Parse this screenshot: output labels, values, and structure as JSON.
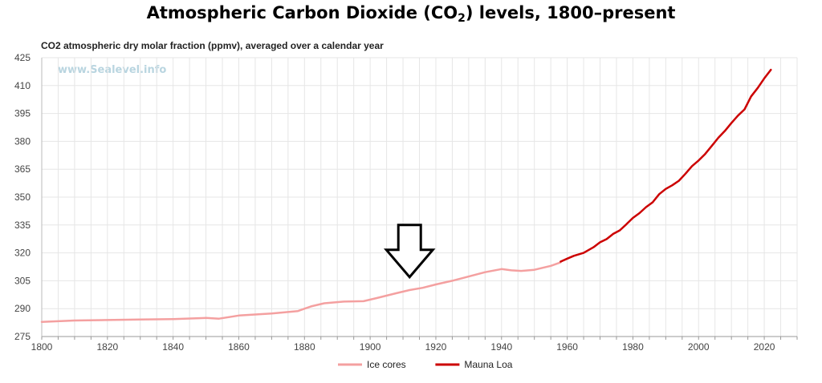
{
  "header": {
    "title_prefix": "Atmospheric Carbon Dioxide (CO",
    "title_sub": "2",
    "title_suffix": ") levels, 1800–present",
    "subtitle": "CO2 atmospheric dry molar fraction (ppmv), averaged over a calendar year",
    "watermark": "www.Sealevel.info"
  },
  "chart_data": {
    "type": "line",
    "title": "Atmospheric Carbon Dioxide (CO2) levels, 1800–present",
    "subtitle": "CO2 atmospheric dry molar fraction (ppmv), averaged over a calendar year",
    "xlabel": "",
    "ylabel": "",
    "xlim": [
      1800,
      2030
    ],
    "ylim": [
      275,
      425
    ],
    "x_ticks": [
      "1800",
      "1820",
      "1840",
      "1860",
      "1880",
      "1900",
      "1920",
      "1940",
      "1960",
      "1980",
      "2000",
      "2020"
    ],
    "y_ticks": [
      "425",
      "410",
      "395",
      "380",
      "365",
      "350",
      "335",
      "320",
      "305",
      "290",
      "275"
    ],
    "grid": true,
    "legend_position": "bottom-center",
    "series": [
      {
        "name": "Ice cores",
        "color": "#f4a0a0",
        "points": [
          [
            1800,
            282.9
          ],
          [
            1810,
            283.6
          ],
          [
            1820,
            283.9
          ],
          [
            1830,
            284.2
          ],
          [
            1840,
            284.4
          ],
          [
            1850,
            285.0
          ],
          [
            1854,
            284.6
          ],
          [
            1860,
            286.3
          ],
          [
            1870,
            287.4
          ],
          [
            1878,
            288.7
          ],
          [
            1882,
            291.2
          ],
          [
            1886,
            292.9
          ],
          [
            1892,
            293.8
          ],
          [
            1898,
            294.0
          ],
          [
            1902,
            295.7
          ],
          [
            1908,
            298.3
          ],
          [
            1912,
            300.0
          ],
          [
            1916,
            301.2
          ],
          [
            1920,
            303.0
          ],
          [
            1925,
            305.0
          ],
          [
            1930,
            307.3
          ],
          [
            1935,
            309.6
          ],
          [
            1940,
            311.3
          ],
          [
            1943,
            310.6
          ],
          [
            1946,
            310.3
          ],
          [
            1950,
            310.9
          ],
          [
            1955,
            313.0
          ],
          [
            1958,
            314.9
          ]
        ]
      },
      {
        "name": "Mauna Loa",
        "color": "#cc0000",
        "points": [
          [
            1958,
            315.3
          ],
          [
            1960,
            316.9
          ],
          [
            1962,
            318.4
          ],
          [
            1965,
            320.0
          ],
          [
            1968,
            323.0
          ],
          [
            1970,
            325.7
          ],
          [
            1972,
            327.4
          ],
          [
            1974,
            330.2
          ],
          [
            1976,
            332.1
          ],
          [
            1978,
            335.4
          ],
          [
            1980,
            338.8
          ],
          [
            1982,
            341.4
          ],
          [
            1984,
            344.6
          ],
          [
            1986,
            347.2
          ],
          [
            1988,
            351.6
          ],
          [
            1990,
            354.4
          ],
          [
            1992,
            356.4
          ],
          [
            1994,
            358.8
          ],
          [
            1996,
            362.6
          ],
          [
            1998,
            366.7
          ],
          [
            2000,
            369.7
          ],
          [
            2002,
            373.2
          ],
          [
            2004,
            377.5
          ],
          [
            2006,
            381.9
          ],
          [
            2008,
            385.6
          ],
          [
            2010,
            389.9
          ],
          [
            2012,
            393.9
          ],
          [
            2014,
            397.2
          ],
          [
            2016,
            404.2
          ],
          [
            2018,
            408.7
          ],
          [
            2020,
            413.9
          ],
          [
            2022,
            418.5
          ]
        ]
      }
    ],
    "annotations": [
      {
        "type": "arrow-down",
        "label": "",
        "x": 1912,
        "y_top": 335,
        "y_tip": 307
      }
    ]
  }
}
